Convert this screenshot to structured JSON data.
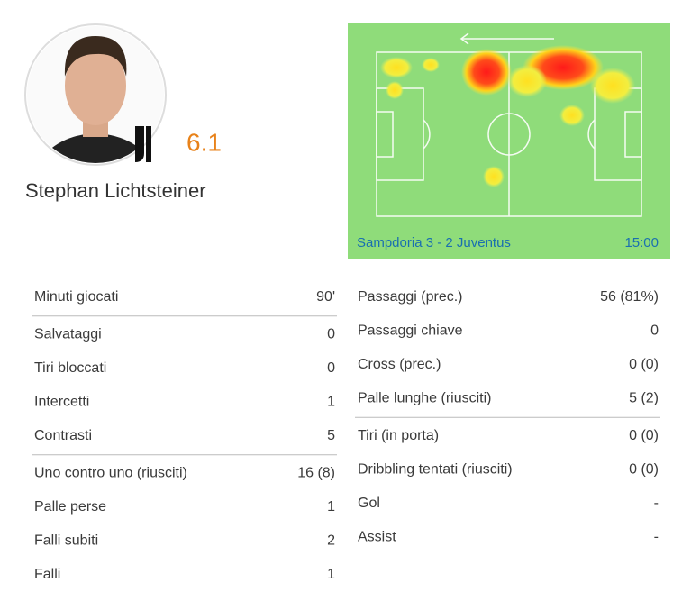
{
  "player": {
    "name": "Stephan Lichtsteiner",
    "rating": "6.1"
  },
  "match": {
    "label": "Sampdoria 3 - 2 Juventus",
    "time": "15:00"
  },
  "left_groups": [
    [
      [
        "Minuti giocati",
        "90'"
      ]
    ],
    [
      [
        "Salvataggi",
        "0"
      ],
      [
        "Tiri bloccati",
        "0"
      ],
      [
        "Intercetti",
        "1"
      ],
      [
        "Contrasti",
        "5"
      ]
    ],
    [
      [
        "Uno contro uno (riusciti)",
        "16 (8)"
      ],
      [
        "Palle perse",
        "1"
      ],
      [
        "Falli subiti",
        "2"
      ],
      [
        "Falli",
        "1"
      ]
    ]
  ],
  "right_groups": [
    [
      [
        "Passaggi (prec.)",
        "56 (81%)"
      ],
      [
        "Passaggi chiave",
        "0"
      ],
      [
        "Cross (prec.)",
        "0 (0)"
      ],
      [
        "Palle lunghe (riusciti)",
        "5 (2)"
      ]
    ],
    [
      [
        "Tiri (in porta)",
        "0 (0)"
      ],
      [
        "Dribbling tentati (riusciti)",
        "0 (0)"
      ],
      [
        "Gol",
        "-"
      ],
      [
        "Assist",
        "-"
      ]
    ]
  ]
}
